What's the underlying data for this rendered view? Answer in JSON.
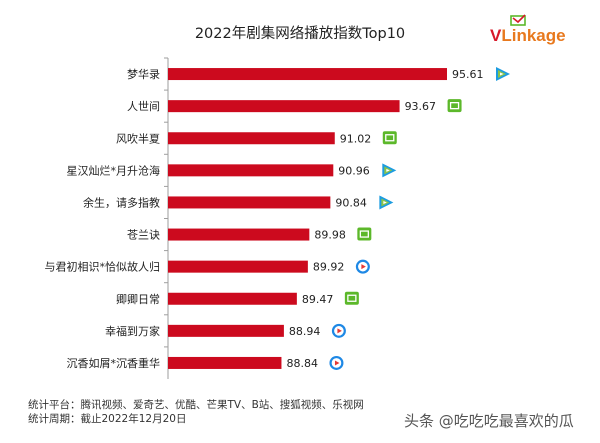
{
  "chart_data": {
    "type": "bar",
    "orientation": "horizontal",
    "title": "2022年剧集网络播放指数Top10",
    "categories": [
      "梦华录",
      "人世间",
      "风吹半夏",
      "星汉灿烂*月升沧海",
      "余生，请多指教",
      "苍兰诀",
      "与君初相识*恰似故人归",
      "卿卿日常",
      "幸福到万家",
      "沉香如屑*沉香重华"
    ],
    "values": [
      95.61,
      93.67,
      91.02,
      90.96,
      90.84,
      89.98,
      89.92,
      89.47,
      88.94,
      88.84
    ],
    "value_labels": [
      "95.61",
      "93.67",
      "91.02",
      "90.96",
      "90.84",
      "89.98",
      "89.92",
      "89.47",
      "88.94",
      "88.84"
    ],
    "platform_icons": [
      "tencent-video-icon",
      "iqiyi-icon",
      "iqiyi-icon",
      "tencent-video-icon",
      "tencent-video-icon",
      "iqiyi-icon",
      "youku-icon",
      "iqiyi-icon",
      "youku-icon",
      "youku-icon"
    ],
    "xlim": [
      84.2,
      95.61
    ],
    "grid": false,
    "legend": "none",
    "bar_color": "#cc0a1e"
  },
  "logo": {
    "v": "V",
    "rest": "Linkage"
  },
  "footer": {
    "line1": "统计平台：腾讯视频、爱奇艺、优酷、芒果TV、B站、搜狐视频、乐视网",
    "line2": "统计周期：截止2022年12月20日"
  },
  "watermark": "头条 @吃吃吃最喜欢的瓜",
  "colors": {
    "iqiyi": "#5cb82a",
    "tencent": "#1c9ce0",
    "youku": "#1e88e5",
    "axis": "#9e9e9e"
  }
}
